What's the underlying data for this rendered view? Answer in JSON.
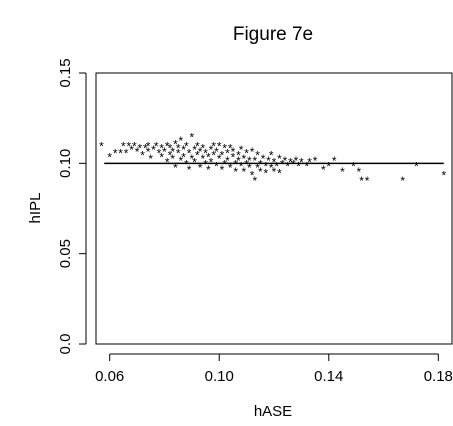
{
  "chart_data": {
    "type": "scatter",
    "title": "Figure 7e",
    "xlabel": "hASE",
    "ylabel": "hIPL",
    "xlim": [
      0.055,
      0.185
    ],
    "ylim": [
      0.0,
      0.15
    ],
    "xticks": [
      "0.06",
      "0.10",
      "0.14",
      "0.18"
    ],
    "yticks": [
      "0.0",
      "0.05",
      "0.10",
      "0.15"
    ],
    "xtick_values": [
      0.06,
      0.1,
      0.14,
      0.18
    ],
    "ytick_values": [
      0.0,
      0.05,
      0.1,
      0.15
    ],
    "marker": "*",
    "grid": false,
    "fit_line": {
      "x": [
        0.058,
        0.182
      ],
      "y": [
        0.1,
        0.1
      ]
    },
    "points": [
      [
        0.057,
        0.111
      ],
      [
        0.06,
        0.105
      ],
      [
        0.062,
        0.107
      ],
      [
        0.064,
        0.107
      ],
      [
        0.065,
        0.111
      ],
      [
        0.066,
        0.107
      ],
      [
        0.067,
        0.111
      ],
      [
        0.068,
        0.109
      ],
      [
        0.069,
        0.111
      ],
      [
        0.07,
        0.108
      ],
      [
        0.071,
        0.11
      ],
      [
        0.072,
        0.106
      ],
      [
        0.073,
        0.11
      ],
      [
        0.074,
        0.108
      ],
      [
        0.074,
        0.111
      ],
      [
        0.075,
        0.104
      ],
      [
        0.076,
        0.109
      ],
      [
        0.077,
        0.111
      ],
      [
        0.078,
        0.107
      ],
      [
        0.079,
        0.11
      ],
      [
        0.079,
        0.105
      ],
      [
        0.08,
        0.108
      ],
      [
        0.081,
        0.111
      ],
      [
        0.081,
        0.102
      ],
      [
        0.082,
        0.106
      ],
      [
        0.082,
        0.11
      ],
      [
        0.083,
        0.108
      ],
      [
        0.083,
        0.104
      ],
      [
        0.084,
        0.112
      ],
      [
        0.084,
        0.099
      ],
      [
        0.085,
        0.107
      ],
      [
        0.085,
        0.11
      ],
      [
        0.086,
        0.114
      ],
      [
        0.086,
        0.103
      ],
      [
        0.087,
        0.109
      ],
      [
        0.087,
        0.105
      ],
      [
        0.088,
        0.111
      ],
      [
        0.088,
        0.101
      ],
      [
        0.089,
        0.107
      ],
      [
        0.089,
        0.098
      ],
      [
        0.09,
        0.116
      ],
      [
        0.09,
        0.104
      ],
      [
        0.091,
        0.109
      ],
      [
        0.091,
        0.102
      ],
      [
        0.092,
        0.111
      ],
      [
        0.092,
        0.106
      ],
      [
        0.093,
        0.099
      ],
      [
        0.093,
        0.108
      ],
      [
        0.094,
        0.104
      ],
      [
        0.094,
        0.11
      ],
      [
        0.095,
        0.101
      ],
      [
        0.095,
        0.107
      ],
      [
        0.096,
        0.098
      ],
      [
        0.096,
        0.105
      ],
      [
        0.097,
        0.109
      ],
      [
        0.097,
        0.102
      ],
      [
        0.098,
        0.111
      ],
      [
        0.098,
        0.106
      ],
      [
        0.099,
        0.1
      ],
      [
        0.099,
        0.108
      ],
      [
        0.1,
        0.104
      ],
      [
        0.1,
        0.111
      ],
      [
        0.101,
        0.098
      ],
      [
        0.101,
        0.106
      ],
      [
        0.102,
        0.11
      ],
      [
        0.102,
        0.101
      ],
      [
        0.103,
        0.107
      ],
      [
        0.103,
        0.103
      ],
      [
        0.104,
        0.11
      ],
      [
        0.104,
        0.099
      ],
      [
        0.105,
        0.105
      ],
      [
        0.105,
        0.108
      ],
      [
        0.106,
        0.101
      ],
      [
        0.106,
        0.097
      ],
      [
        0.107,
        0.106
      ],
      [
        0.107,
        0.103
      ],
      [
        0.108,
        0.109
      ],
      [
        0.108,
        0.1
      ],
      [
        0.109,
        0.104
      ],
      [
        0.109,
        0.097
      ],
      [
        0.11,
        0.107
      ],
      [
        0.11,
        0.101
      ],
      [
        0.111,
        0.103
      ],
      [
        0.111,
        0.099
      ],
      [
        0.112,
        0.108
      ],
      [
        0.112,
        0.095
      ],
      [
        0.113,
        0.103
      ],
      [
        0.113,
        0.092
      ],
      [
        0.114,
        0.106
      ],
      [
        0.114,
        0.099
      ],
      [
        0.115,
        0.101
      ],
      [
        0.115,
        0.097
      ],
      [
        0.116,
        0.104
      ],
      [
        0.117,
        0.1
      ],
      [
        0.117,
        0.096
      ],
      [
        0.118,
        0.103
      ],
      [
        0.119,
        0.099
      ],
      [
        0.119,
        0.106
      ],
      [
        0.12,
        0.102
      ],
      [
        0.12,
        0.097
      ],
      [
        0.121,
        0.1
      ],
      [
        0.122,
        0.104
      ],
      [
        0.122,
        0.096
      ],
      [
        0.123,
        0.101
      ],
      [
        0.124,
        0.103
      ],
      [
        0.125,
        0.1
      ],
      [
        0.126,
        0.102
      ],
      [
        0.127,
        0.101
      ],
      [
        0.128,
        0.103
      ],
      [
        0.129,
        0.1
      ],
      [
        0.13,
        0.102
      ],
      [
        0.132,
        0.1
      ],
      [
        0.133,
        0.102
      ],
      [
        0.135,
        0.103
      ],
      [
        0.138,
        0.098
      ],
      [
        0.14,
        0.1
      ],
      [
        0.142,
        0.103
      ],
      [
        0.145,
        0.097
      ],
      [
        0.149,
        0.1
      ],
      [
        0.151,
        0.097
      ],
      [
        0.152,
        0.092
      ],
      [
        0.154,
        0.092
      ],
      [
        0.167,
        0.092
      ],
      [
        0.172,
        0.1
      ],
      [
        0.182,
        0.095
      ]
    ]
  }
}
